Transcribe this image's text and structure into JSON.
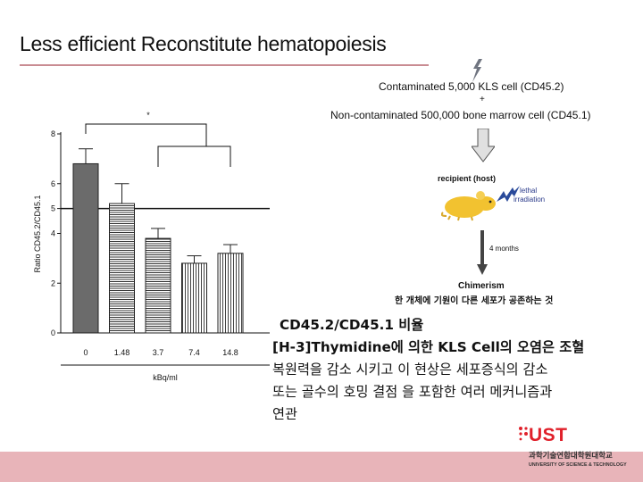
{
  "slide": {
    "title": "Less efficient Reconstitute hematopoiesis"
  },
  "chart_data": {
    "type": "bar",
    "title": "",
    "xlabel": "kBq/ml",
    "ylabel": "Ratio CD45.2/CD45.1",
    "categories": [
      "0",
      "1.48",
      "3.7",
      "7.4",
      "14.8"
    ],
    "values": [
      6.8,
      5.2,
      3.8,
      2.8,
      3.2
    ],
    "errors": [
      0.6,
      0.8,
      0.4,
      0.3,
      0.35
    ],
    "ylim": [
      0,
      8
    ],
    "yticks": [
      "0",
      "2",
      "4",
      "5",
      "6",
      "8"
    ],
    "reference_line": 5,
    "significance_marker": "*",
    "grid": false
  },
  "diagram": {
    "line1": "Contaminated 5,000 KLS cell (CD45.2)",
    "plus": "+",
    "line2": "Non-contaminated 500,000 bone marrow cell (CD45.1)",
    "recipient_label": "recipient (host)",
    "irradiation_label_1": "lethal",
    "irradiation_label_2": "irradiation",
    "duration_label": "4 months",
    "chimerism_label": "Chimerism",
    "chimerism_desc": "한 개체에 기원이 다른 세포가 공존하는 것"
  },
  "body": {
    "line1": "CD45.2/CD45.1 비율",
    "line2": "[H-3]Thymidine에 의한 KLS Cell의 오염은 조혈",
    "line3": "복원력을 감소 시키고 이 현상은 세포증식의 감소",
    "line4": "또는 골수의 호밍 결점 을 포함한 여러 메커니즘과",
    "line5": "연관"
  },
  "logo": {
    "name": "UST",
    "korean": "과학기술연합대학원대학교",
    "english": "UNIVERSITY OF SCIENCE & TECHNOLOGY",
    "color": "#e0202a"
  },
  "colors": {
    "footer": "#e8b4b9",
    "title_rule": "#c98c92",
    "mouse": "#f2c230",
    "lightning": "#2a4a9a"
  }
}
